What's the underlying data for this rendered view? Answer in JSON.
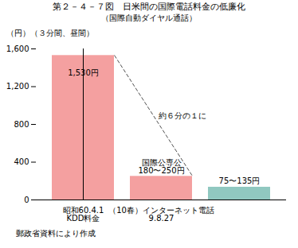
{
  "chart_data": {
    "type": "bar",
    "title": "第２－４－７図　日米間の国際電話料金の低廉化",
    "subtitle": "（国際自動ダイヤル通話）",
    "ylabel": "（円）",
    "ylabel_note": "（３分間、昼間）",
    "categories": [
      "昭和60.4.1\nKDD料金",
      "（10春）インターネット電話\n9.8.27",
      null
    ],
    "values": [
      1530,
      250,
      135
    ],
    "bar_labels": [
      "1,530円",
      "国際公専公\n180〜250円",
      "75〜135円"
    ],
    "colors": [
      "#F4A0A0",
      "#F4A0A0",
      "#90C8C0"
    ],
    "annotation": "約６分の１に",
    "dashed_line_color": "#505050",
    "footer": "郵政省資料により作成",
    "ylim": [
      0,
      1600
    ],
    "yticks": [
      0,
      400,
      800,
      {
        "value": 1200,
        "label": "1,200"
      },
      {
        "value": 1600,
        "label": "1,600"
      }
    ]
  }
}
